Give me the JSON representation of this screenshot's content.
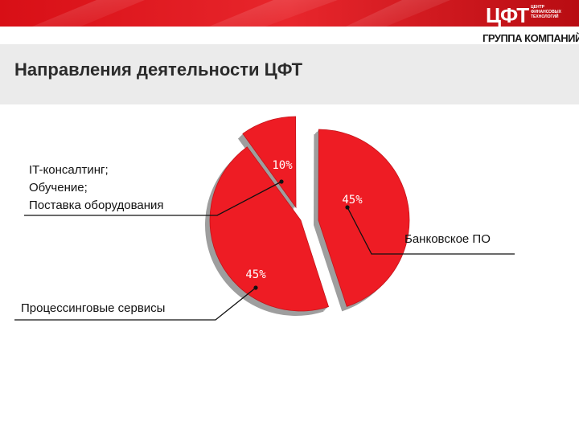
{
  "logo": {
    "main": "ЦФТ",
    "small_lines": [
      "ЦЕНТР",
      "ФИНАНСОВЫХ",
      "ТЕХНОЛОГИЙ"
    ],
    "subtitle": "ГРУППА КОМПАНИЙ"
  },
  "page": {
    "title": "Направления деятельности ЦФТ"
  },
  "colors": {
    "accent": "#e31e24",
    "slice": "#ee1c24",
    "shadow": "#9e9e9e",
    "title_bar": "#ebebeb"
  },
  "chart_data": {
    "type": "pie",
    "title": "",
    "exploded": true,
    "slices": [
      {
        "name": "Банковское ПО",
        "value": 45,
        "value_label": "45%",
        "label_lines": [
          "Банковское ПО"
        ]
      },
      {
        "name": "Процессинговые сервисы",
        "value": 45,
        "value_label": "45%",
        "label_lines": [
          "Процессинговые сервисы"
        ]
      },
      {
        "name": "IT-консалтинг; Обучение; Поставка оборудования",
        "value": 10,
        "value_label": "10%",
        "label_lines": [
          "IT-консалтинг;",
          "Обучение;",
          "Поставка оборудования"
        ]
      }
    ]
  }
}
